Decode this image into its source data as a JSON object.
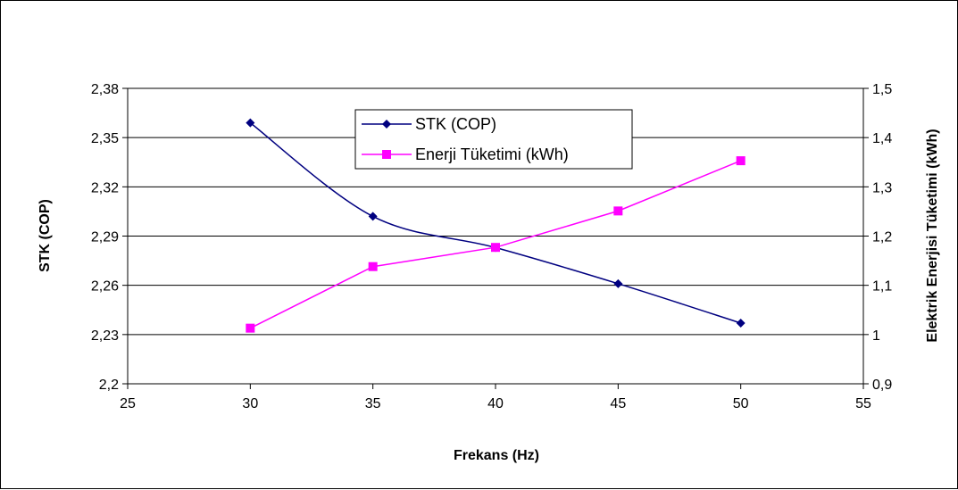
{
  "chart_data": {
    "type": "line",
    "title": "",
    "xlabel": "Frekans (Hz)",
    "ylabel": "STK (COP)",
    "y2label": "Elektrik Enerjisi Tüketimi (kWh)",
    "xlim": [
      25,
      55
    ],
    "xticks": [
      25,
      30,
      35,
      40,
      45,
      50,
      55
    ],
    "xtick_labels": [
      "25",
      "30",
      "35",
      "40",
      "45",
      "50",
      "55"
    ],
    "ylim": [
      2.2,
      2.38
    ],
    "yticks": [
      2.2,
      2.23,
      2.26,
      2.29,
      2.32,
      2.35,
      2.38
    ],
    "ytick_labels": [
      "2,2",
      "2,23",
      "2,26",
      "2,29",
      "2,32",
      "2,35",
      "2,38"
    ],
    "y2lim": [
      0.9,
      1.5
    ],
    "y2ticks": [
      0.9,
      1.0,
      1.1,
      1.2,
      1.3,
      1.4,
      1.5
    ],
    "y2tick_labels": [
      "0,9",
      "1",
      "1,1",
      "1,2",
      "1,3",
      "1,4",
      "1,5"
    ],
    "grid": "horizontal",
    "legend_position": "top-center",
    "series": [
      {
        "name": "STK (COP)",
        "axis": "left",
        "marker": "diamond",
        "color": "#000080",
        "smooth": true,
        "x": [
          30,
          35,
          40,
          45,
          50
        ],
        "values": [
          2.359,
          2.302,
          2.283,
          2.261,
          2.237
        ]
      },
      {
        "name": "Enerji Tüketimi (kWh)",
        "axis": "right",
        "marker": "square",
        "color": "#ff00ff",
        "smooth": false,
        "x": [
          30,
          35,
          40,
          45,
          50
        ],
        "values": [
          1.013,
          1.138,
          1.177,
          1.251,
          1.353
        ]
      }
    ]
  }
}
